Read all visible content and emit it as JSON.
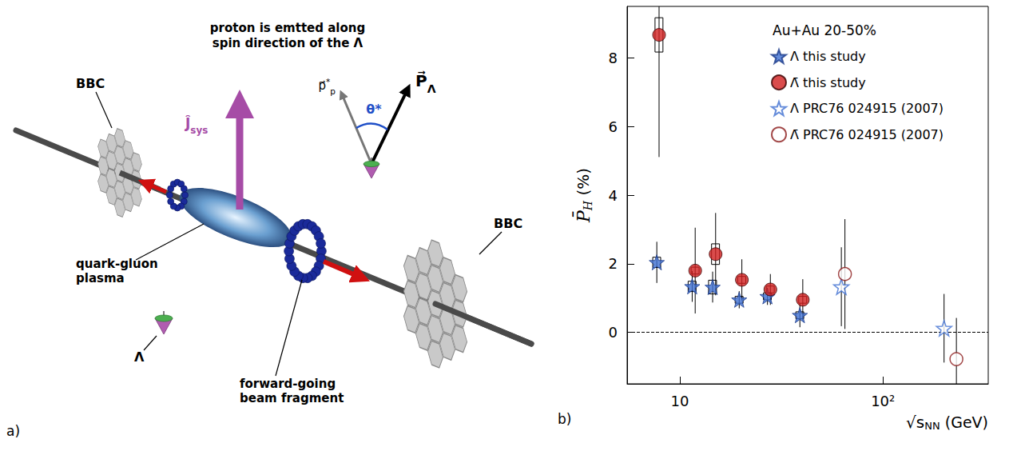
{
  "diagram": {
    "panel_label": "a)",
    "bbc_labels": [
      "BBC",
      "BBC"
    ],
    "jsys": {
      "symbol": "Ĵ",
      "subscript": "sys"
    },
    "note": [
      "proton is emtted along",
      "spin direction of the Λ"
    ],
    "proton_momentum": {
      "symbol": "p⃗",
      "superscript": "*",
      "subscript": "p"
    },
    "angle": "θ*",
    "polarization": {
      "symbol": "P⃗",
      "subscript": "Λ"
    },
    "qgp_label": [
      "quark-gluon",
      "plasma"
    ],
    "lambda_label": "Λ",
    "fragment_label": [
      "forward-going",
      "beam fragment"
    ]
  },
  "chart_data": {
    "type": "scatter",
    "panel_label": "b)",
    "legend_title": "Au+Au 20-50%",
    "xlabel": {
      "symbol": "√s",
      "subscript": "NN",
      "unit": "(GeV)"
    },
    "ylabel": {
      "symbol": "P̄",
      "subscript": "H",
      "unit": "(%)"
    },
    "log": "x",
    "xlim": [
      5.5,
      330
    ],
    "xticks": [
      10,
      {
        "value": 100,
        "label": "10²"
      }
    ],
    "ylim": [
      -1.5,
      9.5
    ],
    "yticks": [
      0,
      2,
      4,
      6,
      8
    ],
    "hline": 0,
    "grid": false,
    "legend": "upper right",
    "series": [
      {
        "name": "Λ this study",
        "marker": "star",
        "color": "#3f6fd1",
        "x": [
          7.7,
          11.5,
          14.5,
          19.6,
          27,
          39
        ],
        "values": [
          2.04,
          1.34,
          1.32,
          0.95,
          1.05,
          0.5
        ],
        "stat_err": [
          0.6,
          0.45,
          0.45,
          0.25,
          0.25,
          0.35
        ],
        "sys_err": [
          0.15,
          0.15,
          0.2,
          0.1,
          0.1,
          0.1
        ]
      },
      {
        "name": "Λ̄ this study",
        "marker": "circle",
        "color": "#d11f1f",
        "x": [
          7.9,
          11.9,
          15,
          20.2,
          27.9,
          40.3
        ],
        "values": [
          8.67,
          1.8,
          2.28,
          1.53,
          1.25,
          0.95
        ],
        "stat_err": [
          3.56,
          1.25,
          1.2,
          0.6,
          0.45,
          0.6
        ],
        "sys_err": [
          0.5,
          0.1,
          0.3,
          0.1,
          0.1,
          0.1
        ]
      },
      {
        "name": "Λ PRC76 024915 (2007)",
        "marker": "star_open",
        "color": "#3f6fd1",
        "x": [
          62.4,
          200
        ],
        "values": [
          1.33,
          0.12
        ],
        "stat_err": [
          1.15,
          1.0
        ]
      },
      {
        "name": "Λ̄ PRC76 024915 (2007)",
        "marker": "circle_open",
        "color": "#8b1a1a",
        "x": [
          65,
          230
        ],
        "values": [
          1.7,
          -0.78
        ],
        "stat_err": [
          1.6,
          1.2
        ]
      }
    ]
  }
}
